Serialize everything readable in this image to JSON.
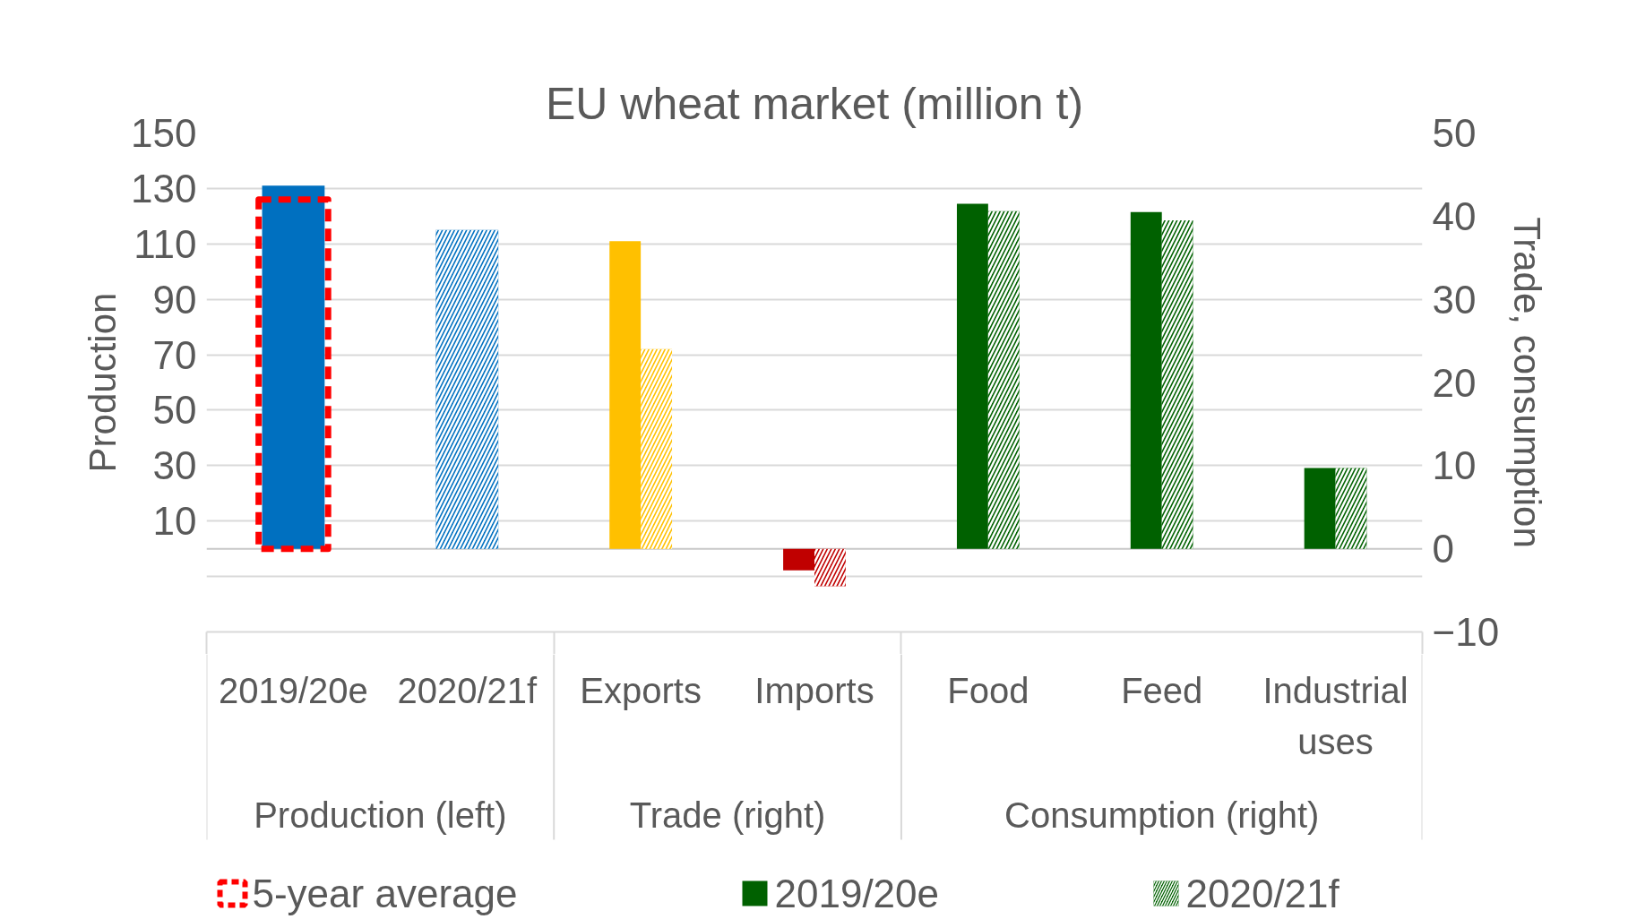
{
  "chart_data": {
    "type": "bar",
    "title": "EU wheat market (million t)",
    "ylabel": "Production",
    "y2label": "Trade, consumption",
    "categories": [
      "2019/20e",
      "2020/21f",
      "Exports",
      "Imports",
      "Food",
      "Feed",
      "Industrial uses"
    ],
    "annotations": [
      "Production (left)",
      "Trade (right)",
      "Consumption (right)"
    ],
    "series": [
      {
        "axis": "y",
        "color": "#0070c0",
        "values": [
          131,
          null,
          null,
          null,
          null,
          null,
          null
        ]
      },
      {
        "axis": "y",
        "color": "#0070c0",
        "values": [
          null,
          115,
          null,
          null,
          null,
          null,
          null
        ]
      },
      {
        "name": "5-year average",
        "axis": "y",
        "color": "#ff0000",
        "line_style": "dashed",
        "values": [
          126,
          null,
          null,
          null,
          null,
          null,
          null
        ]
      },
      {
        "name": "2019/20e",
        "axis": "y2",
        "color": "#006100",
        "colors": [
          null,
          null,
          "#ffc000",
          "#c00000",
          "#006100",
          "#006100",
          "#006100"
        ],
        "values": [
          null,
          null,
          37,
          -2.6,
          41.5,
          40.5,
          9.7
        ]
      },
      {
        "name": "2020/21f",
        "axis": "y2",
        "color": "#006100",
        "colors": [
          null,
          null,
          "#ffc000",
          "#c00000",
          "#006100",
          "#006100",
          "#006100"
        ],
        "values": [
          null,
          null,
          24,
          -4.5,
          40.6,
          39.5,
          9.7
        ]
      }
    ],
    "ylim": [
      -30,
      150
    ],
    "yticks": [
      {
        "value": -10,
        "label": null
      },
      10,
      30,
      50,
      70,
      90,
      110,
      130,
      150
    ],
    "y2lim": [
      -10,
      50
    ],
    "y2ticks": [
      -10,
      0,
      10,
      20,
      30,
      40,
      50
    ],
    "ref_lines": [
      {
        "axis": "y",
        "value": 0,
        "color": "#c8c8c8"
      }
    ],
    "grid": "y",
    "legend": "bottom"
  }
}
